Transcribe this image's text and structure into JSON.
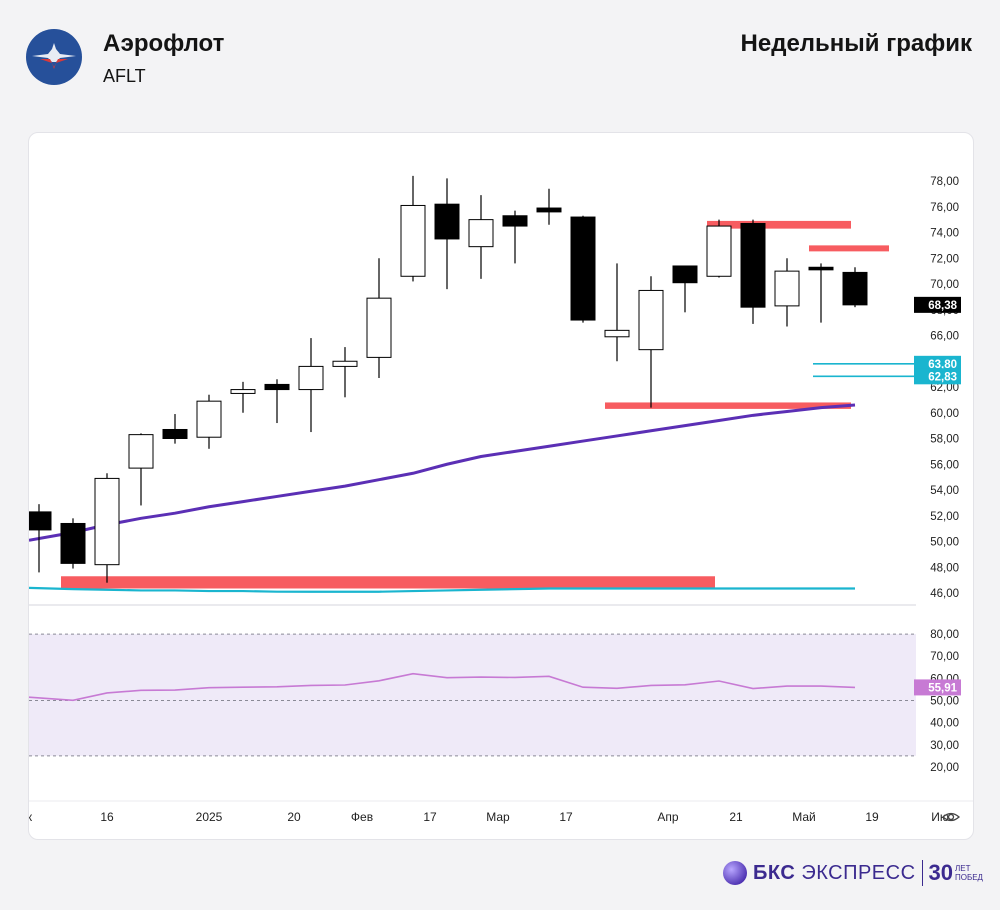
{
  "header": {
    "company": "Аэрофлот",
    "ticker": "AFLT",
    "period": "Недельный график"
  },
  "footer": {
    "brand_bold": "БКС",
    "brand_rest": "ЭКСПРЕСС",
    "anniversary_number": "30",
    "anniversary_line1": "ЛЕТ",
    "anniversary_line2": "ПОБЕД"
  },
  "icons": {
    "logo": "aeroflot-winged-logo-icon",
    "settings": "eye-settings-icon"
  },
  "colors": {
    "bull_candle": "#ffffff",
    "bear_candle": "#000000",
    "moving_average": "#5b2fb5",
    "rsi_line": "#c77ad4",
    "rsi_band": "#efeaf8",
    "resistance_zone": "#f64a4f",
    "support_line": "#1ab5cf",
    "last_price_badge": "#000000",
    "level_badge": "#1ab5cf",
    "rsi_badge": "#c77ad4"
  },
  "chart_data": {
    "type": "candlestick",
    "price_axis": {
      "min": 46,
      "max": 78,
      "ticks": [
        "78,00",
        "76,00",
        "74,00",
        "72,00",
        "70,00",
        "68,00",
        "66,00",
        "64,00",
        "62,00",
        "60,00",
        "58,00",
        "56,00",
        "54,00",
        "52,00",
        "50,00",
        "48,00",
        "46,00"
      ]
    },
    "candles": [
      {
        "o": 52.3,
        "h": 52.9,
        "l": 47.6,
        "c": 50.9
      },
      {
        "o": 51.4,
        "h": 51.8,
        "l": 47.9,
        "c": 48.3
      },
      {
        "o": 48.2,
        "h": 55.3,
        "l": 46.8,
        "c": 54.9
      },
      {
        "o": 55.7,
        "h": 58.4,
        "l": 52.8,
        "c": 58.3
      },
      {
        "o": 58.7,
        "h": 59.9,
        "l": 57.6,
        "c": 58.0
      },
      {
        "o": 58.1,
        "h": 61.4,
        "l": 57.2,
        "c": 60.9
      },
      {
        "o": 61.5,
        "h": 62.4,
        "l": 60.0,
        "c": 61.8
      },
      {
        "o": 62.2,
        "h": 62.6,
        "l": 59.2,
        "c": 61.8
      },
      {
        "o": 61.8,
        "h": 65.8,
        "l": 58.5,
        "c": 63.6
      },
      {
        "o": 63.6,
        "h": 65.1,
        "l": 61.2,
        "c": 64.0
      },
      {
        "o": 64.3,
        "h": 72.0,
        "l": 62.7,
        "c": 68.9
      },
      {
        "o": 70.6,
        "h": 78.4,
        "l": 70.2,
        "c": 76.1
      },
      {
        "o": 76.2,
        "h": 78.2,
        "l": 69.6,
        "c": 73.5
      },
      {
        "o": 72.9,
        "h": 76.9,
        "l": 70.4,
        "c": 75.0
      },
      {
        "o": 75.3,
        "h": 75.7,
        "l": 71.6,
        "c": 74.5
      },
      {
        "o": 75.9,
        "h": 77.4,
        "l": 74.6,
        "c": 75.6
      },
      {
        "o": 75.2,
        "h": 75.3,
        "l": 67.0,
        "c": 67.2
      },
      {
        "o": 65.9,
        "h": 71.6,
        "l": 64.0,
        "c": 66.4
      },
      {
        "o": 64.9,
        "h": 70.6,
        "l": 60.4,
        "c": 69.5
      },
      {
        "o": 71.4,
        "h": 71.4,
        "l": 67.8,
        "c": 70.1
      },
      {
        "o": 70.6,
        "h": 75.0,
        "l": 70.5,
        "c": 74.5
      },
      {
        "o": 74.7,
        "h": 75.0,
        "l": 66.9,
        "c": 68.2
      },
      {
        "o": 68.3,
        "h": 72.0,
        "l": 66.7,
        "c": 71.0
      },
      {
        "o": 71.3,
        "h": 71.6,
        "l": 67.0,
        "c": 71.1
      },
      {
        "o": 70.9,
        "h": 71.3,
        "l": 68.2,
        "c": 68.38
      }
    ],
    "moving_average": [
      50.1,
      50.7,
      51.3,
      51.8,
      52.2,
      52.7,
      53.1,
      53.5,
      53.9,
      54.3,
      54.8,
      55.3,
      56.0,
      56.6,
      57.0,
      57.4,
      57.8,
      58.2,
      58.6,
      59.0,
      59.4,
      59.8,
      60.1,
      60.4,
      60.6
    ],
    "support_line": [
      46.4,
      46.3,
      46.25,
      46.2,
      46.2,
      46.15,
      46.15,
      46.1,
      46.1,
      46.1,
      46.1,
      46.15,
      46.2,
      46.25,
      46.3,
      46.35,
      46.35,
      46.35,
      46.35,
      46.35,
      46.35,
      46.35,
      46.35,
      46.35,
      46.35
    ],
    "zones": [
      {
        "from_index": 1,
        "to_index": 20,
        "low": 46.35,
        "high": 47.3
      },
      {
        "from_index": 17,
        "to_index": 24,
        "low": 60.3,
        "high": 60.8
      },
      {
        "from_index": 20,
        "to_index": 24,
        "low": 74.3,
        "high": 74.9
      },
      {
        "from_index": 23,
        "to_index": 25,
        "low": 72.6,
        "high": 73.0
      }
    ],
    "levels": [
      {
        "from_index": 23,
        "value": 63.8,
        "label": "63,80"
      },
      {
        "from_index": 23,
        "value": 62.83,
        "label": "62,83"
      }
    ],
    "last_price": {
      "value": 68.38,
      "label": "68,38"
    },
    "rsi": {
      "min": 15,
      "max": 85,
      "ticks": [
        "80,00",
        "70,00",
        "60,00",
        "50,00",
        "40,00",
        "30,00",
        "20,00"
      ],
      "overbought": 80,
      "oversold": 25,
      "midline": 50,
      "values": [
        51.5,
        50.1,
        53.4,
        54.6,
        54.7,
        55.8,
        56.0,
        56.2,
        56.8,
        57.0,
        58.9,
        62.1,
        60.3,
        60.6,
        60.4,
        60.9,
        56.0,
        55.5,
        56.8,
        57.1,
        58.8,
        55.4,
        56.5,
        56.5,
        55.91
      ],
      "last_label": "55,91"
    },
    "x_labels": [
      {
        "index": -0.5,
        "text": "Дек"
      },
      {
        "index": 2,
        "text": "16"
      },
      {
        "index": 5,
        "text": "2025"
      },
      {
        "index": 7.5,
        "text": "20"
      },
      {
        "index": 9.5,
        "text": "Фев"
      },
      {
        "index": 11.5,
        "text": "17"
      },
      {
        "index": 13.5,
        "text": "Мар"
      },
      {
        "index": 15.5,
        "text": "17"
      },
      {
        "index": 18.5,
        "text": "Апр"
      },
      {
        "index": 20.5,
        "text": "21"
      },
      {
        "index": 22.5,
        "text": "Май"
      },
      {
        "index": 24.5,
        "text": "19"
      },
      {
        "index": 26.5,
        "text": "Ию"
      }
    ]
  }
}
